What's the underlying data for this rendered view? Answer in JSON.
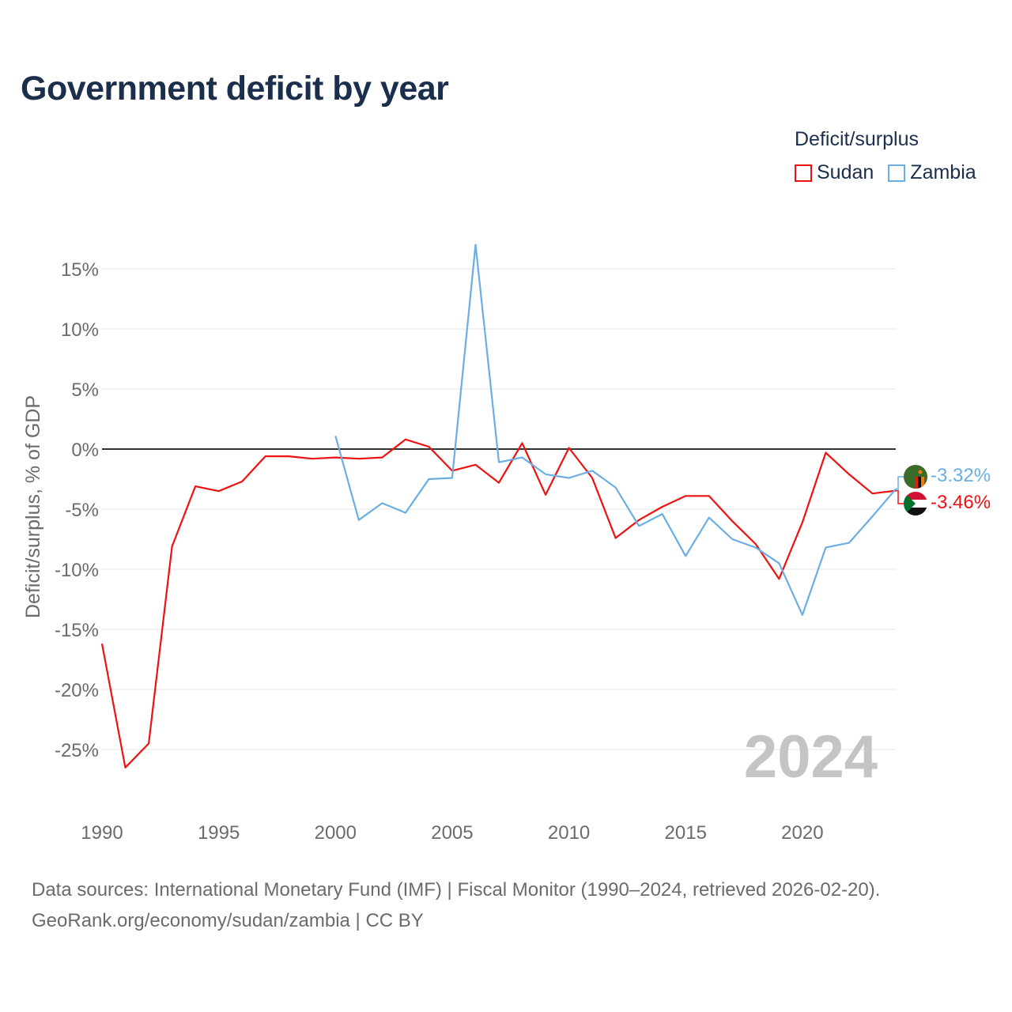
{
  "title": "Government deficit by year",
  "legend": {
    "title": "Deficit/surplus",
    "items": [
      {
        "name": "Sudan",
        "color": "#ee1111"
      },
      {
        "name": "Zambia",
        "color": "#6aaee4"
      }
    ]
  },
  "source": {
    "line1": "Data sources: International Monetary Fund (IMF) | Fiscal Monitor (1990–2024, retrieved 2026-02-20).",
    "line2": "GeoRank.org/economy/sudan/zambia | CC BY"
  },
  "chart_data": {
    "type": "line",
    "title": "Government deficit by year",
    "ylabel": "Deficit/surplus, % of GDP",
    "xlabel": "",
    "xlim": [
      1990,
      2024
    ],
    "ylim": [
      -30,
      17
    ],
    "x_ticks": [
      1990,
      1995,
      2000,
      2005,
      2010,
      2015,
      2020
    ],
    "x_tick_labels": [
      "1990",
      "1995",
      "2000",
      "2005",
      "2010",
      "2015",
      "2020"
    ],
    "y_ticks": [
      15,
      10,
      5,
      0,
      -5,
      -10,
      -15,
      -20,
      -25
    ],
    "y_tick_labels": [
      "15%",
      "10%",
      "5%",
      "0%",
      "-5%",
      "-10%",
      "-15%",
      "-20%",
      "-25%"
    ],
    "year_watermark": "2024",
    "series": [
      {
        "name": "Sudan",
        "color": "#ee1111",
        "end_label": "-3.46%",
        "x": [
          1990,
          1991,
          1992,
          1993,
          1994,
          1995,
          1996,
          1997,
          1998,
          1999,
          2000,
          2001,
          2002,
          2003,
          2004,
          2005,
          2006,
          2007,
          2008,
          2009,
          2010,
          2011,
          2012,
          2013,
          2014,
          2015,
          2016,
          2017,
          2018,
          2019,
          2020,
          2021,
          2022,
          2023,
          2024
        ],
        "values": [
          -16.2,
          -26.5,
          -24.5,
          -8.1,
          -3.1,
          -3.5,
          -2.7,
          -0.6,
          -0.6,
          -0.8,
          -0.7,
          -0.8,
          -0.7,
          0.8,
          0.2,
          -1.8,
          -1.3,
          -2.8,
          0.5,
          -3.8,
          0.1,
          -2.4,
          -7.4,
          -5.9,
          -4.8,
          -3.9,
          -3.9,
          -6.0,
          -7.9,
          -10.8,
          -6.1,
          -0.3,
          -2.1,
          -3.7,
          -3.46
        ]
      },
      {
        "name": "Zambia",
        "color": "#6aaee4",
        "end_label": "-3.32%",
        "x": [
          2000,
          2001,
          2002,
          2003,
          2004,
          2005,
          2006,
          2007,
          2008,
          2009,
          2010,
          2011,
          2012,
          2013,
          2014,
          2015,
          2016,
          2017,
          2018,
          2019,
          2020,
          2021,
          2022,
          2023,
          2024
        ],
        "values": [
          1.1,
          -5.9,
          -4.5,
          -5.3,
          -2.5,
          -2.4,
          17.0,
          -1.1,
          -0.7,
          -2.1,
          -2.4,
          -1.8,
          -3.2,
          -6.4,
          -5.4,
          -8.9,
          -5.7,
          -7.5,
          -8.2,
          -9.5,
          -13.8,
          -8.2,
          -7.8,
          -5.6,
          -3.32
        ]
      }
    ]
  }
}
